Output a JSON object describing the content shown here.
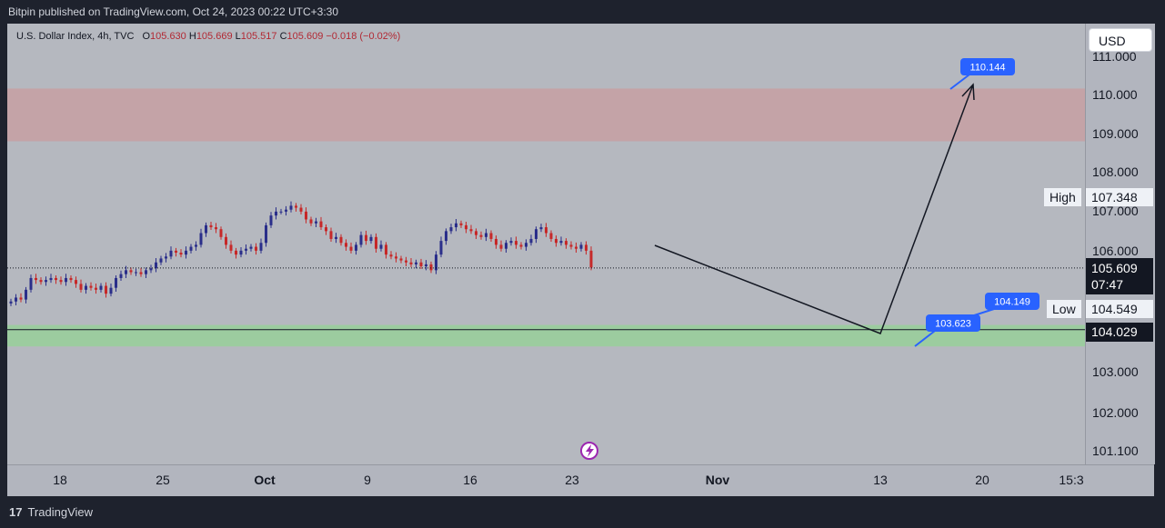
{
  "header": {
    "published_by": "Bitpin published on TradingView.com, Oct 24, 2023 00:22 UTC+3:30"
  },
  "legend": {
    "symbol": "U.S. Dollar Index, 4h, TVC",
    "o_label": "O",
    "o_value": "105.630",
    "h_label": "H",
    "h_value": "105.669",
    "l_label": "L",
    "l_value": "105.517",
    "c_label": "C",
    "c_value": "105.609",
    "change": "−0.018 (−0.02%)"
  },
  "currency": "USD",
  "footer": {
    "brand": "TradingView"
  },
  "chart_data": {
    "type": "candlestick",
    "symbol": "U.S. Dollar Index",
    "interval": "4h",
    "y_ticks": [
      "111.000",
      "110.000",
      "109.000",
      "108.000",
      "107.000",
      "106.000",
      "103.000",
      "102.000",
      "101.100"
    ],
    "x_ticks": [
      "18",
      "25",
      "Oct",
      "9",
      "16",
      "23",
      "Nov",
      "13",
      "20",
      "15:3"
    ],
    "high_label": "High",
    "high_value": "107.348",
    "low_label": "Low",
    "low_value": "104.549",
    "last_price": "105.609",
    "countdown": "07:47",
    "line_price": "104.029",
    "resistance_zone": {
      "from": 108.85,
      "to": 110.2,
      "color": "#c4a3a7"
    },
    "support_zone": {
      "from": 103.6,
      "to": 104.15,
      "color": "#9ccc9f"
    },
    "labels": [
      {
        "text": "110.144",
        "price": 110.144
      },
      {
        "text": "104.149",
        "price": 104.149
      },
      {
        "text": "103.623",
        "price": 103.623
      }
    ],
    "closes": [
      104.75,
      104.85,
      104.8,
      105.05,
      105.35,
      105.3,
      105.25,
      105.3,
      105.35,
      105.3,
      105.25,
      105.35,
      105.3,
      105.2,
      105.05,
      105.15,
      105.1,
      105.05,
      105.15,
      104.95,
      105.1,
      105.35,
      105.45,
      105.55,
      105.5,
      105.5,
      105.45,
      105.55,
      105.6,
      105.75,
      105.85,
      105.9,
      106.05,
      106.0,
      105.95,
      106.05,
      106.15,
      106.2,
      106.5,
      106.7,
      106.65,
      106.6,
      106.4,
      106.2,
      106.05,
      105.95,
      106.05,
      106.1,
      106.15,
      106.05,
      106.25,
      106.7,
      106.95,
      107.05,
      107.05,
      107.1,
      107.2,
      107.15,
      107.05,
      106.85,
      106.75,
      106.8,
      106.65,
      106.55,
      106.35,
      106.4,
      106.25,
      106.15,
      106.05,
      106.2,
      106.45,
      106.3,
      106.4,
      106.1,
      106.2,
      105.95,
      105.9,
      105.85,
      105.8,
      105.75,
      105.7,
      105.75,
      105.65,
      105.7,
      105.55,
      105.95,
      106.3,
      106.55,
      106.65,
      106.75,
      106.7,
      106.6,
      106.55,
      106.45,
      106.4,
      106.5,
      106.35,
      106.2,
      106.1,
      106.25,
      106.3,
      106.2,
      106.15,
      106.25,
      106.35,
      106.6,
      106.65,
      106.5,
      106.35,
      106.25,
      106.3,
      106.2,
      106.15,
      106.1,
      106.2,
      106.05,
      105.62
    ]
  }
}
